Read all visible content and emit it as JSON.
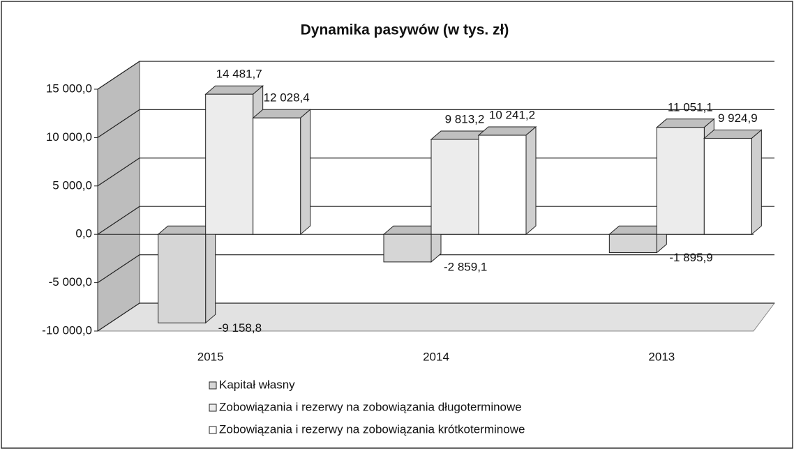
{
  "chart_data": {
    "type": "bar3d",
    "title": "Dynamika pasywów (w tys. zł)",
    "categories": [
      "2015",
      "2014",
      "2013"
    ],
    "series": [
      {
        "name": "Kapitał własny",
        "color": "#d6d6d6",
        "values": [
          -9158.8,
          -2859.1,
          -1895.9
        ],
        "value_labels": [
          "-9 158,8",
          "-2 859,1",
          "-1 895,9"
        ]
      },
      {
        "name": "Zobowiązania i rezerwy na zobowiązania długoterminowe",
        "color": "#ececec",
        "values": [
          14481.7,
          9813.2,
          11051.1
        ],
        "value_labels": [
          "14 481,7",
          "9 813,2",
          "11 051,1"
        ]
      },
      {
        "name": "Zobowiązania i rezerwy na zobowiązania krótkoterminowe",
        "color": "#ffffff",
        "values": [
          12028.4,
          10241.2,
          9924.9
        ],
        "value_labels": [
          "12 028,4",
          "10 241,2",
          "9 924,9"
        ]
      }
    ],
    "ylim": [
      -10000,
      15000
    ],
    "yticks": [
      {
        "value": -10000,
        "label": "-10 000,0"
      },
      {
        "value": -5000,
        "label": "-5 000,0"
      },
      {
        "value": 0,
        "label": "0,0"
      },
      {
        "value": 5000,
        "label": "5 000,0"
      },
      {
        "value": 10000,
        "label": "10 000,0"
      },
      {
        "value": 15000,
        "label": "15 000,0"
      }
    ],
    "grid": true,
    "legend": "bottom-left"
  }
}
